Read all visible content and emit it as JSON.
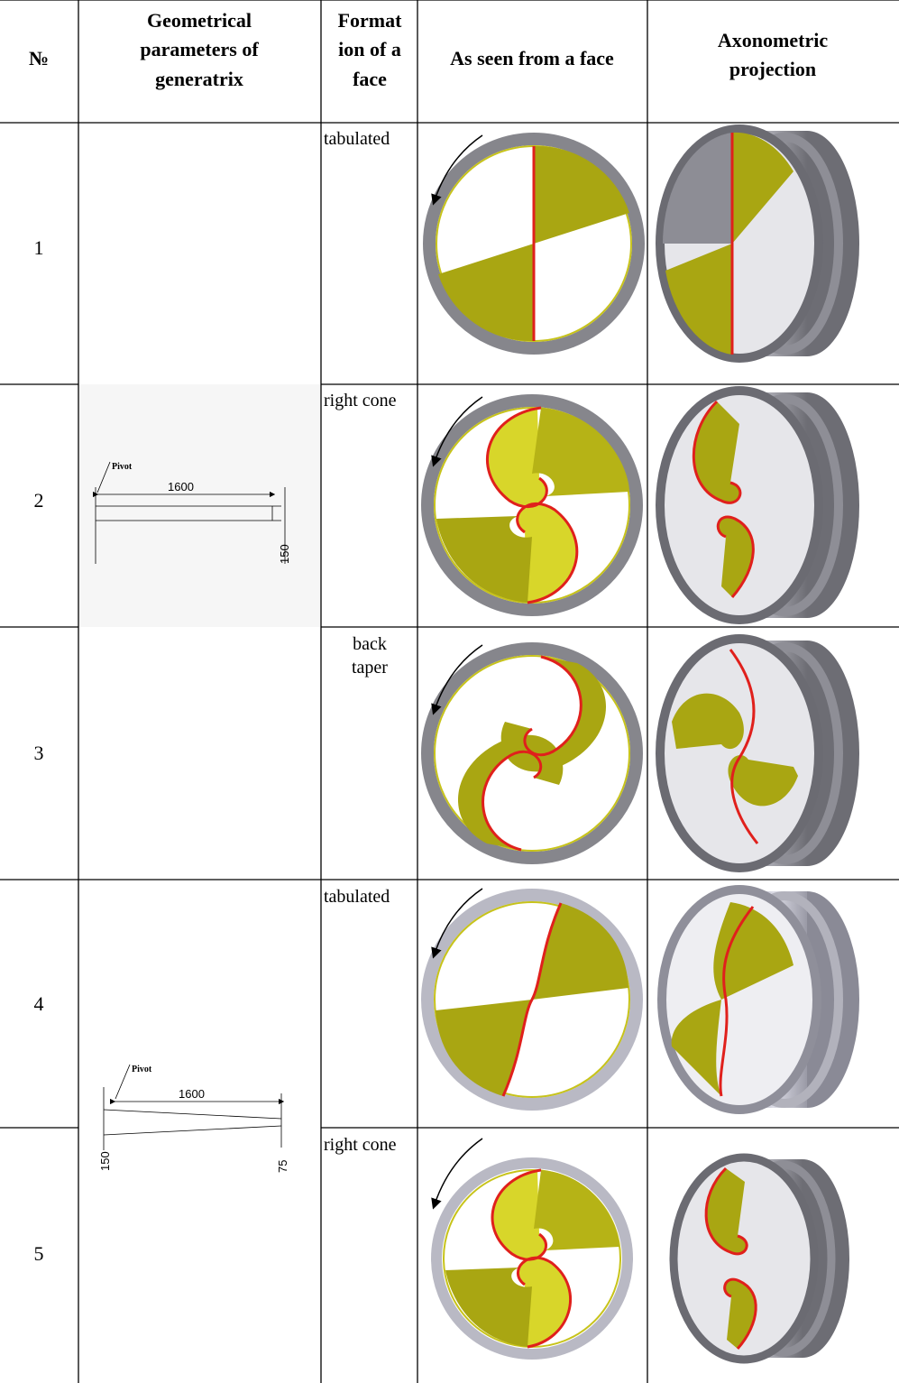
{
  "header": {
    "col_number": "№",
    "col_params": [
      "Geometrical",
      "parameters of",
      "generatrix"
    ],
    "col_formation": [
      "Format",
      "ion of a",
      "face"
    ],
    "col_face": "As seen from a face",
    "col_axon": [
      "Axonometric",
      "projection"
    ]
  },
  "rows": [
    {
      "number": "1",
      "formation": [
        "tabulated"
      ],
      "face_type": "straight"
    },
    {
      "number": "2",
      "formation": [
        "right cone"
      ],
      "face_type": "spiral-right"
    },
    {
      "number": "3",
      "formation": [
        "back",
        "taper"
      ],
      "face_type": "spiral-back"
    },
    {
      "number": "4",
      "formation": [
        "tabulated"
      ],
      "face_type": "s-curve"
    },
    {
      "number": "5",
      "formation": [
        "right cone"
      ],
      "face_type": "spiral-right"
    }
  ],
  "drawing_a": {
    "pivot_label": "Pivot",
    "length": "1600",
    "height": "150"
  },
  "drawing_b": {
    "pivot_label": "Pivot",
    "length": "1600",
    "height_left": "150",
    "height_right": "75"
  },
  "colors": {
    "ring": "#8a8a8e",
    "ring_light": "#b9b9c4",
    "blade": "#a9a612",
    "blade_light": "#d8d62a",
    "edge": "#e0201c",
    "metal": "#7c7c82",
    "metal_light": "#c4c4cc"
  }
}
